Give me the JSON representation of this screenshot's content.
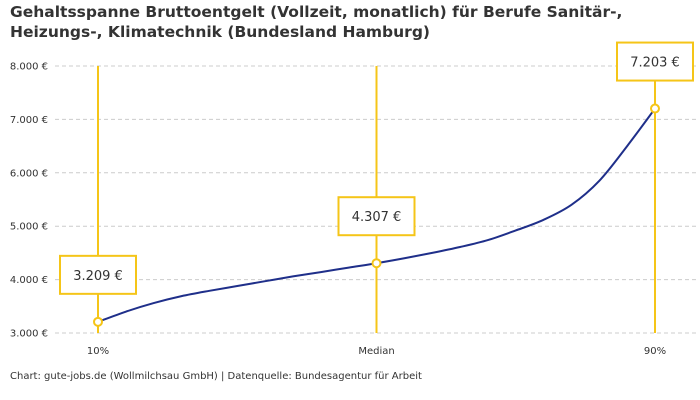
{
  "chart_title": "Gehaltsspanne Bruttoentgelt (Vollzeit, monatlich) für Berufe Sanitär-, Heizungs-, Klimatechnik (Bundesland Hamburg)",
  "credit": "Chart: gute-jobs.de (Wollmilchsau GmbH) | Datenquelle: Bundesagentur für Arbeit",
  "colors": {
    "line": "#1f2f8a",
    "accent": "#f5c518",
    "grid": "#cccccc",
    "text": "#333333"
  },
  "chart_data": {
    "type": "line",
    "title": "Gehaltsspanne Bruttoentgelt (Vollzeit, monatlich) für Berufe Sanitär-, Heizungs-, Klimatechnik (Bundesland Hamburg)",
    "xlabel": "",
    "ylabel": "",
    "ylim": [
      3000,
      8000
    ],
    "y_ticks": [
      {
        "value": 3000,
        "label": "3.000 €"
      },
      {
        "value": 4000,
        "label": "4.000 €"
      },
      {
        "value": 5000,
        "label": "5.000 €"
      },
      {
        "value": 6000,
        "label": "6.000 €"
      },
      {
        "value": 7000,
        "label": "7.000 €"
      },
      {
        "value": 8000,
        "label": "8.000 €"
      }
    ],
    "grid": true,
    "markers": [
      {
        "position": 0.0,
        "x_label": "10%",
        "value": 3209,
        "label": "3.209 €"
      },
      {
        "position": 0.5,
        "x_label": "Median",
        "value": 4307,
        "label": "4.307 €"
      },
      {
        "position": 1.0,
        "x_label": "90%",
        "value": 7203,
        "label": "7.203 €"
      }
    ],
    "curve": [
      [
        0.0,
        3209
      ],
      [
        0.05,
        3400
      ],
      [
        0.1,
        3560
      ],
      [
        0.15,
        3690
      ],
      [
        0.2,
        3790
      ],
      [
        0.25,
        3880
      ],
      [
        0.3,
        3970
      ],
      [
        0.35,
        4060
      ],
      [
        0.4,
        4140
      ],
      [
        0.45,
        4225
      ],
      [
        0.5,
        4307
      ],
      [
        0.55,
        4400
      ],
      [
        0.6,
        4500
      ],
      [
        0.65,
        4610
      ],
      [
        0.7,
        4740
      ],
      [
        0.75,
        4920
      ],
      [
        0.8,
        5120
      ],
      [
        0.85,
        5400
      ],
      [
        0.9,
        5850
      ],
      [
        0.95,
        6500
      ],
      [
        1.0,
        7203
      ]
    ]
  }
}
